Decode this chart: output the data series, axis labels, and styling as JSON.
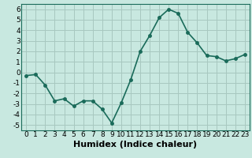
{
  "x": [
    0,
    1,
    2,
    3,
    4,
    5,
    6,
    7,
    8,
    9,
    10,
    11,
    12,
    13,
    14,
    15,
    16,
    17,
    18,
    19,
    20,
    21,
    22,
    23
  ],
  "y": [
    -0.3,
    -0.2,
    -1.2,
    -2.7,
    -2.5,
    -3.2,
    -2.7,
    -2.7,
    -3.5,
    -4.8,
    -2.9,
    -0.7,
    2.0,
    3.5,
    5.2,
    6.0,
    5.6,
    3.8,
    2.8,
    1.6,
    1.5,
    1.1,
    1.3,
    1.7
  ],
  "line_color": "#1a6b5a",
  "marker": "o",
  "marker_size": 2.5,
  "bg_color": "#c8e8e0",
  "grid_color": "#a8c8c0",
  "xlabel": "Humidex (Indice chaleur)",
  "ylim": [
    -5.5,
    6.5
  ],
  "xlim": [
    -0.5,
    23.5
  ],
  "yticks": [
    -5,
    -4,
    -3,
    -2,
    -1,
    0,
    1,
    2,
    3,
    4,
    5,
    6
  ],
  "xticks": [
    0,
    1,
    2,
    3,
    4,
    5,
    6,
    7,
    8,
    9,
    10,
    11,
    12,
    13,
    14,
    15,
    16,
    17,
    18,
    19,
    20,
    21,
    22,
    23
  ],
  "tick_fontsize": 6.5,
  "xlabel_fontsize": 8,
  "linewidth": 1.2
}
